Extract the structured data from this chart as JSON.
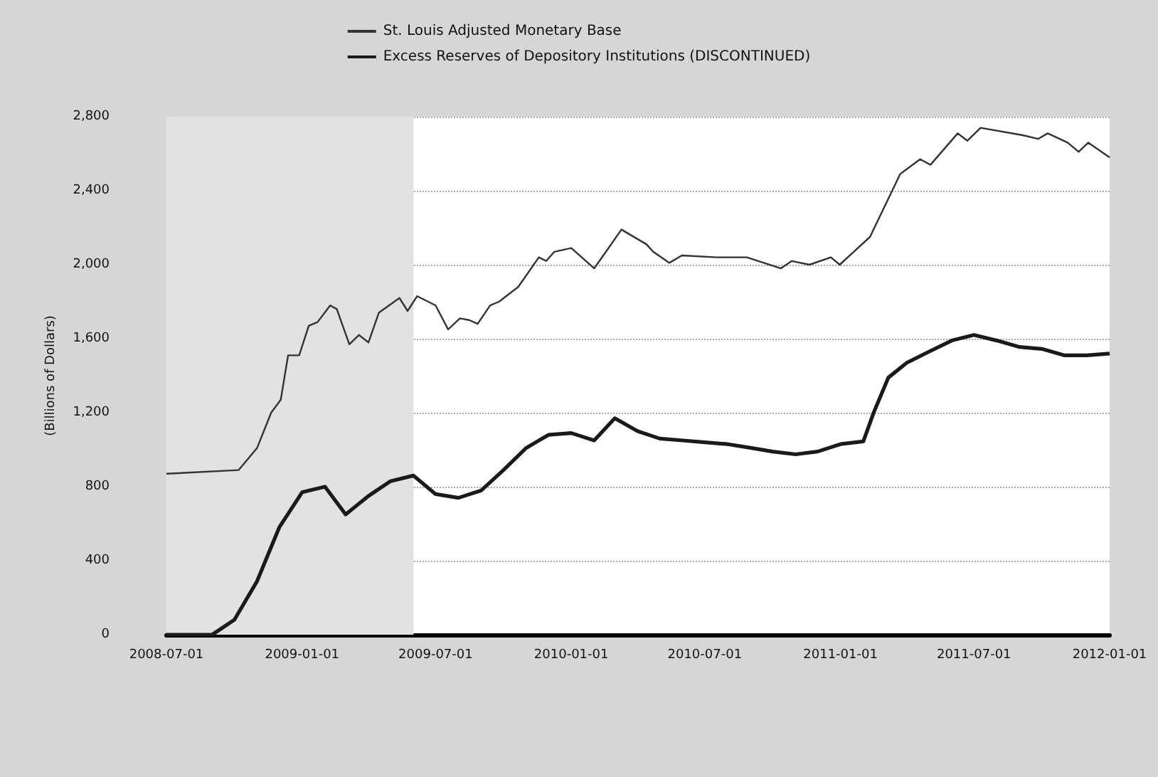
{
  "chart_data": {
    "type": "line",
    "ylabel": "(Billions of Dollars)",
    "xlim": [
      "2008-07-01",
      "2012-01-01"
    ],
    "ylim": [
      0,
      2800
    ],
    "xticks": [
      "2008-07-01",
      "2009-01-01",
      "2009-07-01",
      "2010-01-01",
      "2010-07-01",
      "2011-01-01",
      "2011-07-01",
      "2012-01-01"
    ],
    "yticks": [
      0,
      400,
      800,
      {
        "value": 1200,
        "label": "1,200"
      },
      {
        "value": 1600,
        "label": "1,600"
      },
      {
        "value": 2000,
        "label": "2,000"
      },
      {
        "value": 2400,
        "label": "2,400"
      },
      {
        "value": 2800,
        "label": "2,800"
      }
    ],
    "grid": "y",
    "legend": "top",
    "marker": "none",
    "line_style": "solid",
    "bands": [
      {
        "axis": "x",
        "from": "2008-07-01",
        "to": "2009-06-01",
        "color": "#e2e2e2"
      }
    ],
    "series": [
      {
        "name": "St. Louis Adjusted Monetary Base",
        "color": "#333333",
        "x": [
          "2008-07-01",
          "2008-10-07",
          "2008-11-01",
          "2008-11-20",
          "2008-12-03",
          "2008-12-13",
          "2008-12-28",
          "2009-01-10",
          "2009-01-22",
          "2009-02-08",
          "2009-02-17",
          "2009-03-06",
          "2009-03-19",
          "2009-04-01",
          "2009-04-15",
          "2009-05-13",
          "2009-05-24",
          "2009-06-06",
          "2009-07-01",
          "2009-07-18",
          "2009-08-03",
          "2009-08-16",
          "2009-08-27",
          "2009-09-13",
          "2009-09-25",
          "2009-10-21",
          "2009-11-18",
          "2009-11-28",
          "2009-12-09",
          "2010-01-01",
          "2010-02-01",
          "2010-02-17",
          "2010-03-10",
          "2010-04-13",
          "2010-04-22",
          "2010-05-14",
          "2010-05-31",
          "2010-07-17",
          "2010-08-27",
          "2010-10-12",
          "2010-10-27",
          "2010-11-20",
          "2010-12-19",
          "2010-12-31",
          "2011-01-19",
          "2011-02-10",
          "2011-03-23",
          "2011-04-19",
          "2011-05-03",
          "2011-06-09",
          "2011-06-22",
          "2011-07-10",
          "2011-09-05",
          "2011-09-26",
          "2011-10-09",
          "2011-11-05",
          "2011-11-20",
          "2011-12-03",
          "2012-01-01"
        ],
        "values": [
          870,
          890,
          1010,
          1200,
          1270,
          1510,
          1510,
          1670,
          1690,
          1780,
          1760,
          1570,
          1620,
          1580,
          1740,
          1820,
          1750,
          1830,
          1780,
          1650,
          1710,
          1700,
          1680,
          1780,
          1800,
          1880,
          2040,
          2020,
          2070,
          2090,
          1980,
          2070,
          2190,
          2110,
          2070,
          2010,
          2050,
          2040,
          2040,
          1980,
          2020,
          2000,
          2040,
          2000,
          2070,
          2150,
          2490,
          2570,
          2540,
          2710,
          2670,
          2740,
          2700,
          2680,
          2710,
          2660,
          2610,
          2660,
          2580
        ]
      },
      {
        "name": "Excess Reserves of Depository Institutions (DISCONTINUED)",
        "color": "#1a1a1a",
        "x": [
          "2008-07-01",
          "2008-08-01",
          "2008-09-01",
          "2008-10-01",
          "2008-11-01",
          "2008-12-01",
          "2009-01-01",
          "2009-02-01",
          "2009-03-01",
          "2009-04-01",
          "2009-05-01",
          "2009-06-01",
          "2009-07-01",
          "2009-08-01",
          "2009-09-01",
          "2009-10-01",
          "2009-11-01",
          "2009-12-01",
          "2010-01-01",
          "2010-02-01",
          "2010-03-01",
          "2010-04-01",
          "2010-05-01",
          "2010-06-01",
          "2010-07-01",
          "2010-08-01",
          "2010-09-01",
          "2010-10-01",
          "2010-11-01",
          "2010-12-01",
          "2011-01-01",
          "2011-02-01",
          "2011-02-15",
          "2011-03-07",
          "2011-04-01",
          "2011-05-01",
          "2011-06-01",
          "2011-07-01",
          "2011-08-01",
          "2011-09-01",
          "2011-10-01",
          "2011-11-01",
          "2011-12-01",
          "2012-01-01"
        ],
        "values": [
          0,
          0,
          0,
          80,
          290,
          580,
          770,
          800,
          650,
          750,
          830,
          860,
          760,
          740,
          780,
          890,
          1010,
          1080,
          1090,
          1050,
          1170,
          1100,
          1060,
          1050,
          1040,
          1030,
          1010,
          990,
          975,
          990,
          1030,
          1045,
          1200,
          1390,
          1470,
          1530,
          1590,
          1620,
          1590,
          1555,
          1545,
          1510,
          1510,
          1520
        ]
      }
    ]
  }
}
